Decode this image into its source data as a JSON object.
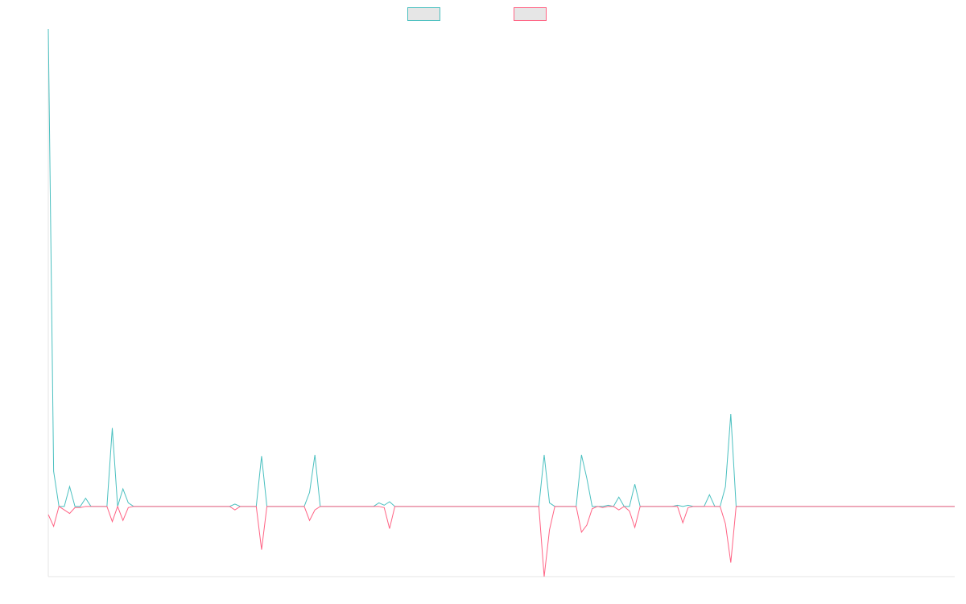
{
  "chart_data": {
    "type": "line",
    "title": "",
    "xlabel": "",
    "ylabel": "",
    "grid": false,
    "legend_position": "top-center",
    "x_count": 170,
    "ylim": [
      -0.3,
      2.04
    ],
    "series": [
      {
        "color": "#4bc0c0",
        "points": [
          [
            0,
            2.04
          ],
          [
            1,
            0.15
          ],
          [
            2,
            0.0
          ],
          [
            3,
            0.0
          ],
          [
            4,
            0.085
          ],
          [
            5,
            0.0
          ],
          [
            6,
            0.0
          ],
          [
            7,
            0.035
          ],
          [
            8,
            0.0
          ],
          [
            11,
            0.0
          ],
          [
            12,
            0.335
          ],
          [
            13,
            0.0
          ],
          [
            14,
            0.075
          ],
          [
            15,
            0.015
          ],
          [
            16,
            0.0
          ],
          [
            34,
            0.0
          ],
          [
            35,
            0.01
          ],
          [
            36,
            0.0
          ],
          [
            39,
            0.0
          ],
          [
            40,
            0.215
          ],
          [
            41,
            0.0
          ],
          [
            48,
            0.0
          ],
          [
            49,
            0.06
          ],
          [
            50,
            0.22
          ],
          [
            51,
            0.0
          ],
          [
            61,
            0.0
          ],
          [
            62,
            0.015
          ],
          [
            63,
            0.005
          ],
          [
            64,
            0.02
          ],
          [
            65,
            0.0
          ],
          [
            92,
            0.0
          ],
          [
            93,
            0.22
          ],
          [
            94,
            0.015
          ],
          [
            95,
            0.0
          ],
          [
            99,
            0.0
          ],
          [
            100,
            0.22
          ],
          [
            101,
            0.12
          ],
          [
            102,
            0.0
          ],
          [
            103,
            0.0
          ],
          [
            104,
            0.0
          ],
          [
            105,
            0.005
          ],
          [
            106,
            0.0
          ],
          [
            107,
            0.04
          ],
          [
            108,
            0.0
          ],
          [
            109,
            0.0
          ],
          [
            110,
            0.095
          ],
          [
            111,
            0.0
          ],
          [
            117,
            0.0
          ],
          [
            118,
            0.005
          ],
          [
            119,
            0.0
          ],
          [
            120,
            0.005
          ],
          [
            121,
            0.0
          ],
          [
            123,
            0.0
          ],
          [
            124,
            0.05
          ],
          [
            125,
            0.0
          ],
          [
            126,
            0.0
          ],
          [
            127,
            0.085
          ],
          [
            128,
            0.395
          ],
          [
            129,
            0.0
          ],
          [
            170,
            0.0
          ]
        ]
      },
      {
        "color": "#ff6384",
        "points": [
          [
            0,
            -0.035
          ],
          [
            1,
            -0.085
          ],
          [
            2,
            0.0
          ],
          [
            3,
            -0.015
          ],
          [
            4,
            -0.03
          ],
          [
            5,
            -0.005
          ],
          [
            6,
            -0.005
          ],
          [
            7,
            0.0
          ],
          [
            8,
            0.0
          ],
          [
            11,
            0.0
          ],
          [
            12,
            -0.065
          ],
          [
            13,
            0.0
          ],
          [
            14,
            -0.06
          ],
          [
            15,
            -0.005
          ],
          [
            16,
            0.0
          ],
          [
            34,
            0.0
          ],
          [
            35,
            -0.015
          ],
          [
            36,
            0.0
          ],
          [
            39,
            0.0
          ],
          [
            40,
            -0.185
          ],
          [
            41,
            0.0
          ],
          [
            48,
            0.0
          ],
          [
            49,
            -0.06
          ],
          [
            50,
            -0.015
          ],
          [
            51,
            0.0
          ],
          [
            61,
            0.0
          ],
          [
            62,
            0.0
          ],
          [
            63,
            -0.005
          ],
          [
            64,
            -0.095
          ],
          [
            65,
            0.0
          ],
          [
            92,
            0.0
          ],
          [
            93,
            -0.3
          ],
          [
            94,
            -0.1
          ],
          [
            95,
            0.0
          ],
          [
            99,
            0.0
          ],
          [
            100,
            -0.11
          ],
          [
            101,
            -0.08
          ],
          [
            102,
            -0.01
          ],
          [
            103,
            0.0
          ],
          [
            104,
            -0.005
          ],
          [
            105,
            0.0
          ],
          [
            106,
            0.0
          ],
          [
            107,
            -0.015
          ],
          [
            108,
            0.0
          ],
          [
            109,
            -0.02
          ],
          [
            110,
            -0.09
          ],
          [
            111,
            0.0
          ],
          [
            117,
            0.0
          ],
          [
            118,
            0.0
          ],
          [
            119,
            -0.07
          ],
          [
            120,
            -0.005
          ],
          [
            121,
            0.0
          ],
          [
            123,
            0.0
          ],
          [
            124,
            0.0
          ],
          [
            125,
            0.0
          ],
          [
            126,
            0.0
          ],
          [
            127,
            -0.075
          ],
          [
            128,
            -0.24
          ],
          [
            129,
            0.0
          ],
          [
            170,
            0.0
          ]
        ]
      }
    ]
  }
}
